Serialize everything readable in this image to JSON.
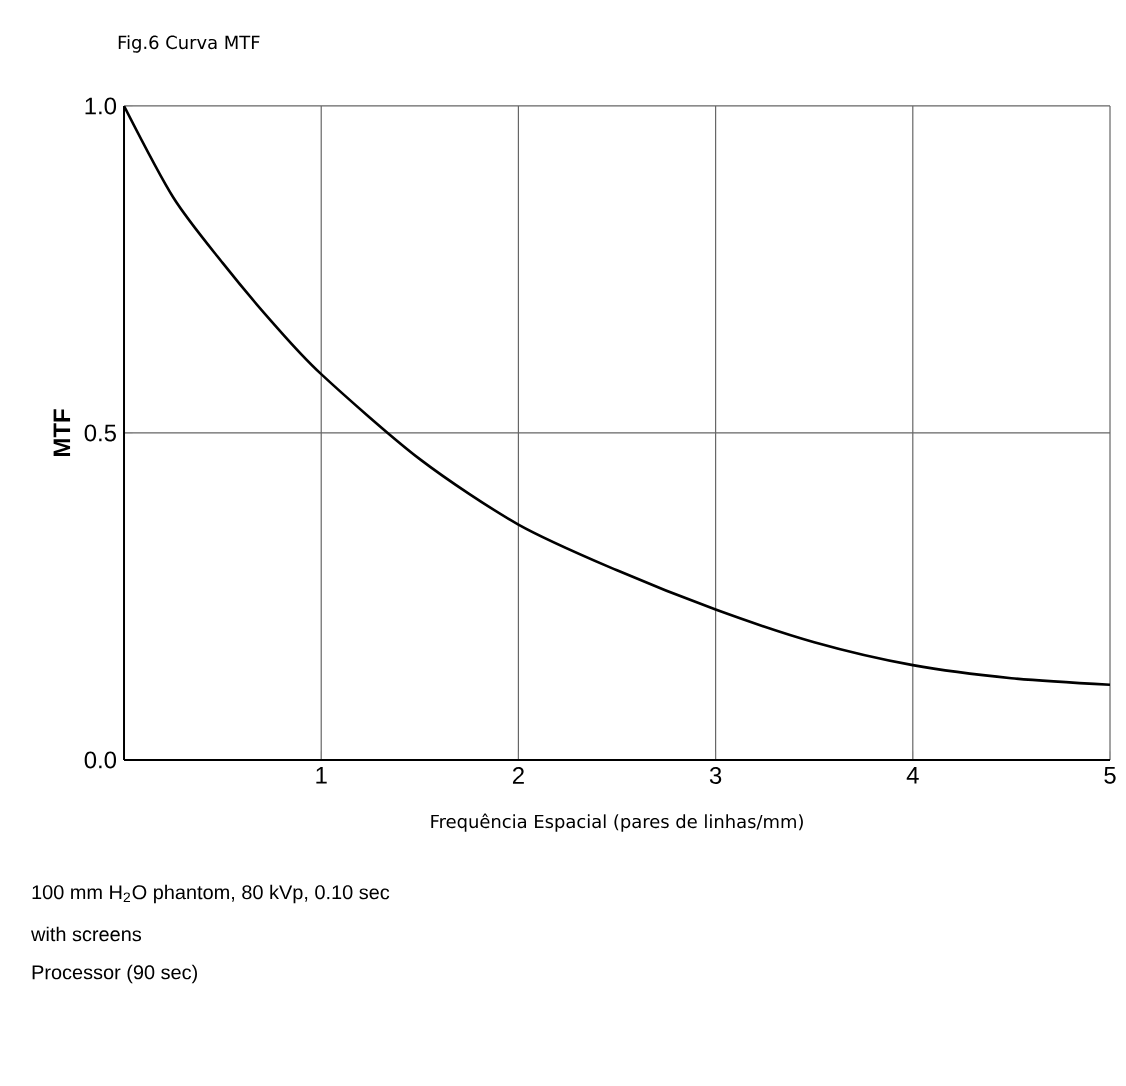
{
  "chart_data": {
    "type": "line",
    "title": "Fig.6 Curva MTF",
    "xlabel": "Frequência Espacial (pares de linhas/mm)",
    "ylabel": "MTF",
    "x": [
      0,
      0.25,
      0.5,
      0.75,
      1,
      1.5,
      2,
      2.5,
      3,
      3.5,
      4,
      4.5,
      5
    ],
    "series": [
      {
        "color": "#000000",
        "values": [
          1.0,
          0.86,
          0.76,
          0.67,
          0.59,
          0.46,
          0.36,
          0.29,
          0.23,
          0.18,
          0.145,
          0.125,
          0.115
        ]
      }
    ],
    "xlim": [
      0,
      5
    ],
    "ylim": [
      0,
      1
    ],
    "xticks": [
      1,
      2,
      3,
      4,
      5
    ],
    "yticks": [
      {
        "value": 0,
        "label": "0.0"
      },
      {
        "value": 0.5,
        "label": "0.5"
      },
      {
        "value": 1,
        "label": "1.0"
      }
    ],
    "grid": true,
    "marker": "none",
    "line_style": "solid",
    "annotations": [
      "100 mm H$_{2}$O phantom, 80 kVp, 0.10 sec",
      "with screens",
      "Processor (90 sec)"
    ]
  }
}
